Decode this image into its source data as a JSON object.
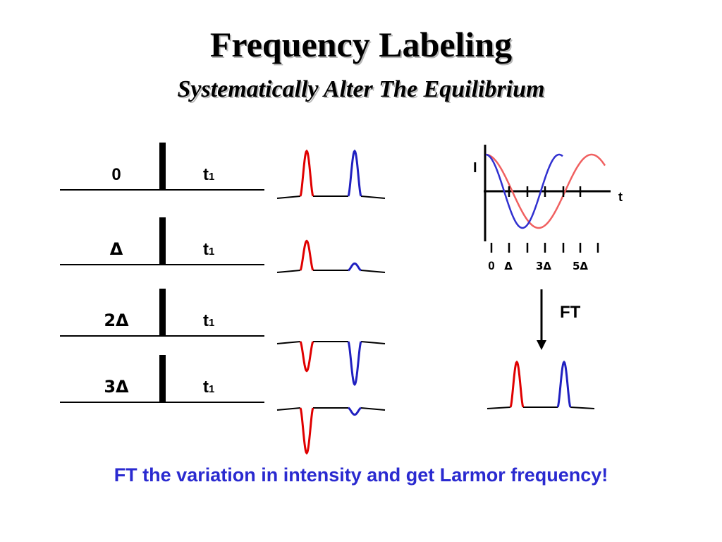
{
  "title": "Frequency Labeling",
  "subtitle": "Systematically Alter The Equilibrium",
  "footer": "FT the variation in intensity and get Larmor frequency!",
  "colors": {
    "red": "#e00000",
    "blue": "#2020c0",
    "light_red": "#f06060",
    "dark_blue": "#3030d0"
  },
  "pulse_sequences": [
    {
      "delay": "0",
      "evolution": "t",
      "evolution_sub": "1"
    },
    {
      "delay": "Δ",
      "evolution": "t",
      "evolution_sub": "1"
    },
    {
      "delay": "2Δ",
      "evolution": "t",
      "evolution_sub": "1"
    },
    {
      "delay": "3Δ",
      "evolution": "t",
      "evolution_sub": "1"
    }
  ],
  "spectra": [
    {
      "red_peak": 1.0,
      "blue_peak": 1.0
    },
    {
      "red_peak": 0.65,
      "blue_peak": 0.15
    },
    {
      "red_peak": -0.65,
      "blue_peak": -0.95
    },
    {
      "red_peak": -1.0,
      "blue_peak": -0.15
    }
  ],
  "intensity_plot": {
    "y_axis_label": "I",
    "x_axis_label": "t",
    "tick_labels": [
      "0",
      "Δ",
      "3Δ",
      "5Δ"
    ]
  },
  "ft_label": "FT"
}
